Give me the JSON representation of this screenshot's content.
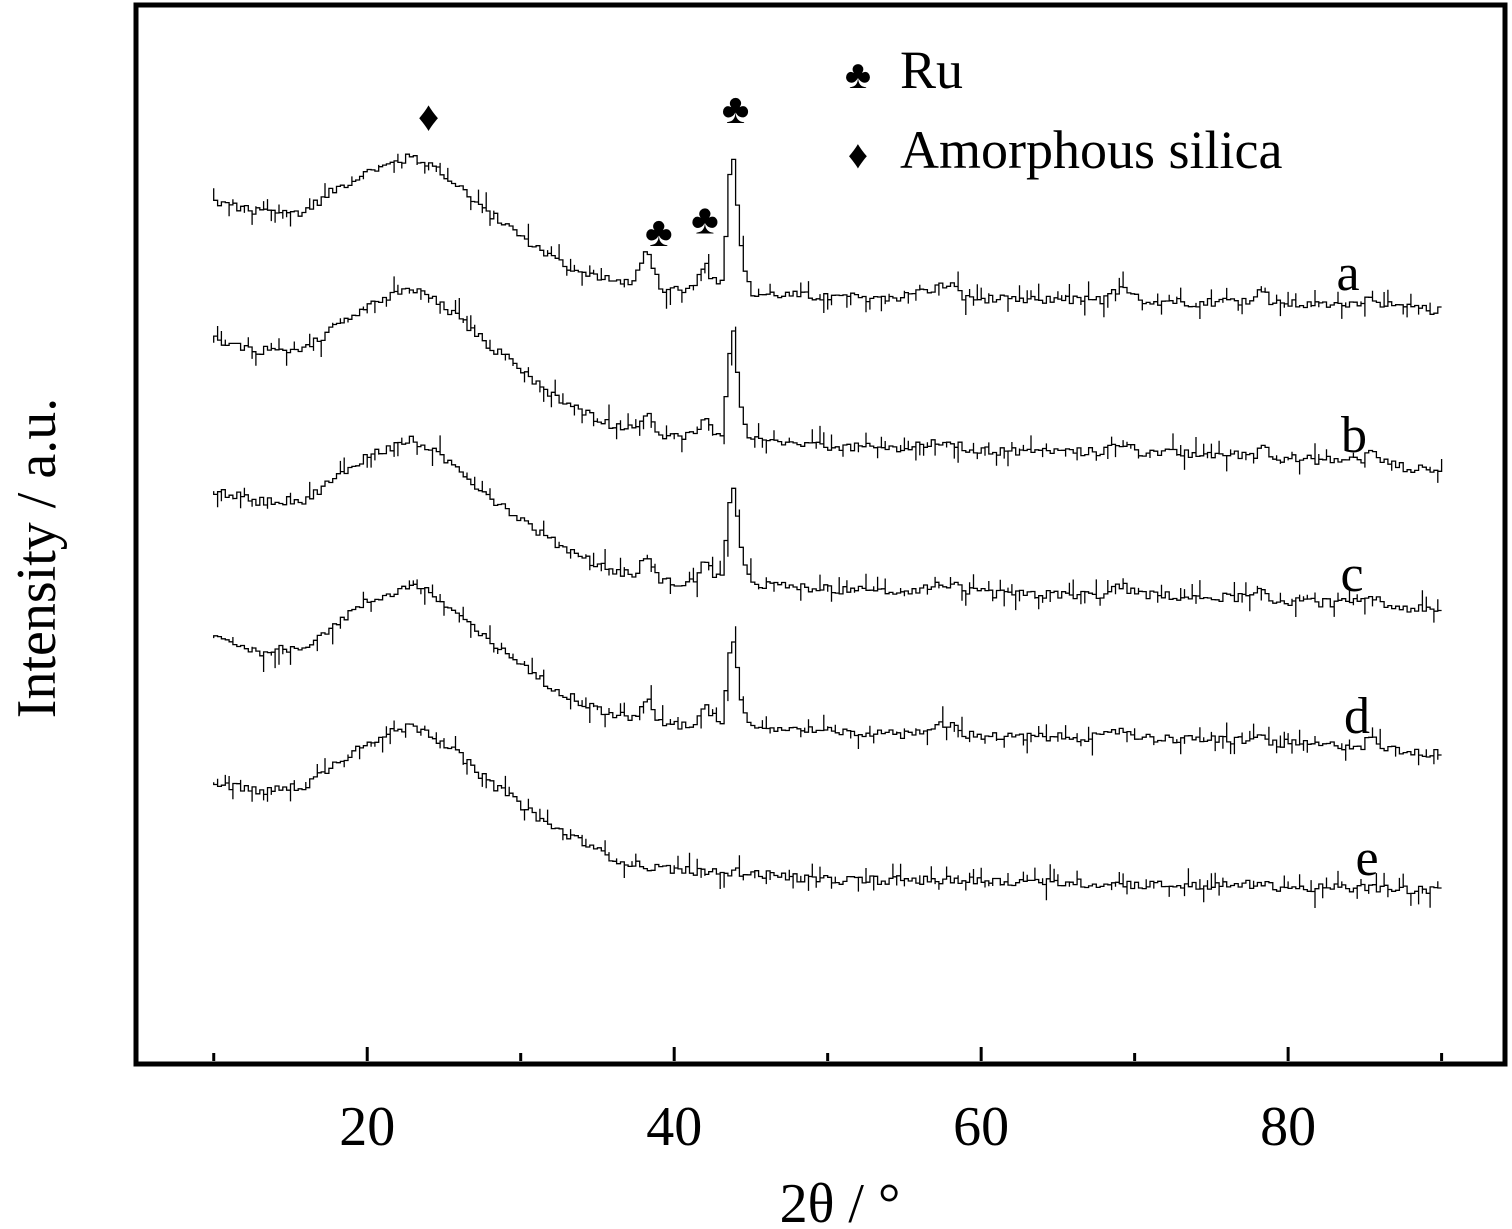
{
  "chart_data": {
    "type": "line",
    "title": "",
    "xlabel": "2θ / °",
    "ylabel": "Intensity / a.u.",
    "xlim": [
      5,
      94
    ],
    "x_ticks": [
      20,
      40,
      60,
      80
    ],
    "x_minor_ticks": [
      10,
      30,
      50,
      70,
      90
    ],
    "y_ticks": [],
    "grid": false,
    "legend": {
      "placement": "top-center",
      "entries": [
        {
          "symbol": "♣",
          "label": "Ru"
        },
        {
          "symbol": "♦",
          "label": "Amorphous silica"
        }
      ]
    },
    "peak_markers": [
      {
        "symbol": "♦",
        "x": 24,
        "series": "a"
      },
      {
        "symbol": "♣",
        "x": 39,
        "series": "a"
      },
      {
        "symbol": "♣",
        "x": 42,
        "series": "a"
      },
      {
        "symbol": "♣",
        "x": 44,
        "series": "a"
      }
    ],
    "series": [
      {
        "name": "a",
        "x": [
          10,
          13,
          16,
          18,
          20,
          22,
          23,
          24,
          26,
          28,
          30,
          32,
          34,
          36,
          37.5,
          38.4,
          38.8,
          39.4,
          40.5,
          41.5,
          42.1,
          42.6,
          43.3,
          43.9,
          44.2,
          44.6,
          45.2,
          47,
          50,
          55,
          58.2,
          59,
          62,
          65,
          68,
          69.3,
          70.5,
          74,
          78,
          78.4,
          79,
          82,
          85,
          85.5,
          86.5,
          88,
          90
        ],
        "values": [
          5.8,
          5.6,
          5.6,
          6.0,
          6.3,
          6.5,
          6.6,
          6.5,
          6.1,
          5.6,
          5.2,
          4.8,
          4.5,
          4.35,
          4.3,
          4.9,
          4.5,
          4.2,
          4.2,
          4.25,
          4.7,
          4.4,
          4.3,
          7.0,
          5.9,
          4.6,
          4.1,
          4.1,
          4.05,
          4.05,
          4.3,
          4.05,
          4.0,
          4.0,
          4.0,
          4.2,
          4.0,
          3.95,
          4.0,
          4.25,
          3.95,
          3.9,
          3.95,
          4.1,
          3.9,
          3.85,
          3.8
        ]
      },
      {
        "name": "b",
        "x": [
          10,
          13,
          16,
          18,
          20,
          22,
          23,
          24,
          26,
          28,
          30,
          32,
          34,
          36,
          37.5,
          38.4,
          38.8,
          39.4,
          40.5,
          41.5,
          42.1,
          42.6,
          43.3,
          43.9,
          44.2,
          44.6,
          45.2,
          47,
          50,
          55,
          58.2,
          59,
          62,
          65,
          68,
          69.3,
          70.5,
          74,
          78,
          78.4,
          79,
          82,
          85,
          85.5,
          86.5,
          88,
          90
        ],
        "values": [
          6.2,
          6.0,
          6.0,
          6.4,
          6.8,
          7.0,
          7.1,
          7.0,
          6.6,
          6.1,
          5.7,
          5.2,
          4.9,
          4.65,
          4.6,
          4.9,
          4.6,
          4.45,
          4.4,
          4.45,
          4.85,
          4.55,
          4.45,
          6.5,
          5.8,
          4.7,
          4.35,
          4.3,
          4.25,
          4.2,
          4.35,
          4.2,
          4.15,
          4.15,
          4.15,
          4.3,
          4.15,
          4.1,
          4.1,
          4.35,
          4.05,
          4.0,
          4.0,
          4.15,
          3.95,
          3.85,
          3.8
        ]
      },
      {
        "name": "c",
        "x": [
          10,
          13,
          16,
          18,
          20,
          22,
          23,
          24,
          26,
          28,
          30,
          32,
          34,
          36,
          37.5,
          38.4,
          38.8,
          39.4,
          40.5,
          41.5,
          42.1,
          42.6,
          43.3,
          43.9,
          44.2,
          44.6,
          45.2,
          47,
          50,
          55,
          58.2,
          59,
          62,
          65,
          68,
          69.3,
          70.5,
          74,
          78,
          78.4,
          79,
          82,
          85,
          85.5,
          86.5,
          88,
          90
        ],
        "values": [
          6.0,
          5.8,
          5.8,
          6.2,
          6.6,
          6.8,
          6.9,
          6.8,
          6.4,
          5.9,
          5.5,
          5.1,
          4.8,
          4.55,
          4.45,
          4.8,
          4.5,
          4.35,
          4.3,
          4.35,
          4.8,
          4.5,
          4.4,
          6.3,
          5.7,
          4.65,
          4.3,
          4.25,
          4.2,
          4.15,
          4.3,
          4.15,
          4.1,
          4.1,
          4.1,
          4.25,
          4.1,
          4.05,
          4.05,
          4.25,
          4.0,
          3.95,
          3.95,
          4.1,
          3.9,
          3.85,
          3.8
        ]
      },
      {
        "name": "d",
        "x": [
          10,
          13,
          16,
          18,
          20,
          22,
          23,
          24,
          26,
          28,
          30,
          32,
          34,
          36,
          37.5,
          38.4,
          38.8,
          39.4,
          40.5,
          41.5,
          42.1,
          42.6,
          43.3,
          43.9,
          44.2,
          44.6,
          45.2,
          47,
          50,
          55,
          58.2,
          59,
          62,
          65,
          68,
          69.3,
          70.5,
          74,
          78,
          78.4,
          79,
          82,
          85,
          85.5,
          86.5,
          88,
          90
        ],
        "values": [
          5.9,
          5.6,
          5.7,
          6.1,
          6.5,
          6.7,
          6.8,
          6.7,
          6.3,
          5.8,
          5.4,
          5.0,
          4.7,
          4.45,
          4.4,
          4.75,
          4.45,
          4.3,
          4.25,
          4.3,
          4.7,
          4.45,
          4.35,
          6.0,
          5.5,
          4.55,
          4.25,
          4.2,
          4.15,
          4.1,
          4.3,
          4.1,
          4.05,
          4.05,
          4.05,
          4.2,
          4.05,
          4.0,
          4.0,
          4.15,
          3.95,
          3.9,
          3.9,
          4.05,
          3.85,
          3.8,
          3.75
        ]
      },
      {
        "name": "e",
        "x": [
          10,
          13,
          16,
          18,
          20,
          22,
          23,
          24,
          26,
          28,
          30,
          32,
          34,
          36,
          38,
          40,
          42,
          44,
          46,
          48,
          50,
          55,
          60,
          65,
          70,
          75,
          78,
          80,
          85,
          88,
          90
        ],
        "values": [
          5.8,
          5.6,
          5.7,
          6.1,
          6.5,
          6.7,
          6.8,
          6.7,
          6.3,
          5.8,
          5.4,
          5.0,
          4.7,
          4.4,
          4.25,
          4.2,
          4.15,
          4.15,
          4.1,
          4.05,
          4.0,
          4.0,
          3.98,
          3.95,
          3.92,
          3.9,
          3.92,
          3.86,
          3.85,
          3.83,
          3.8
        ]
      }
    ],
    "series_labels": [
      "a",
      "b",
      "c",
      "d",
      "e"
    ]
  }
}
